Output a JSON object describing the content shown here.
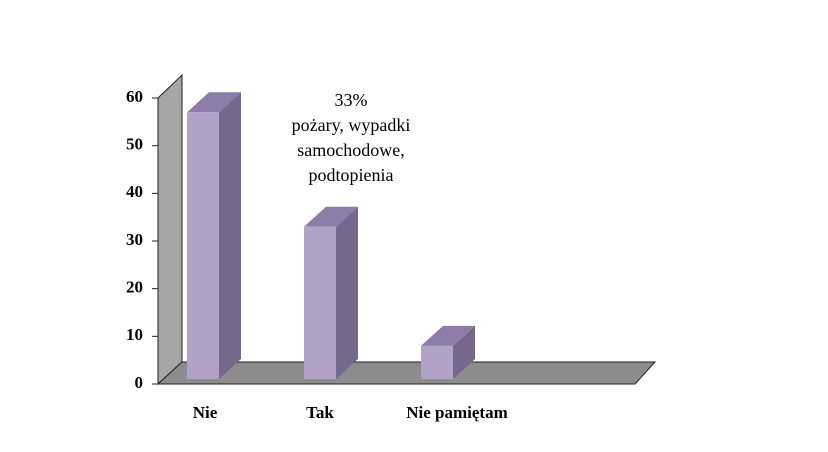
{
  "chart_data": {
    "type": "bar3d",
    "categories": [
      "Nie",
      "Tak",
      "Nie pamiętam"
    ],
    "values": [
      57,
      33,
      8
    ],
    "color": "#b3a2c7",
    "ylim": [
      0,
      60
    ],
    "yticks": [
      0,
      10,
      20,
      30,
      40,
      50,
      60
    ],
    "annotation": [
      "33%",
      "pożary, wypadki",
      "samochodowe,",
      "podtopienia"
    ]
  }
}
